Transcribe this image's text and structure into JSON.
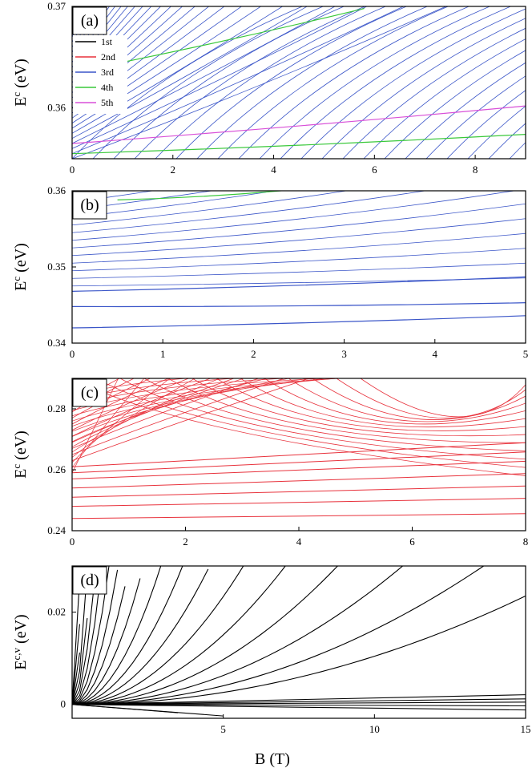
{
  "figure": {
    "xlabel": "B (T)"
  },
  "chart_data": [
    {
      "type": "line",
      "panel": "(a)",
      "ylabel": "E^c (eV)",
      "xlim": [
        0,
        9
      ],
      "ylim": [
        0.355,
        0.37
      ],
      "xticks": [
        0,
        2,
        4,
        6,
        8
      ],
      "yticks": [
        0.36,
        0.37
      ],
      "ytick_labels": [
        "0.36",
        "0.37"
      ],
      "legend": {
        "placement": "top-left",
        "entries": [
          {
            "label": "1st",
            "color": "#000000"
          },
          {
            "label": "2nd",
            "color": "#e8323c"
          },
          {
            "label": "3rd",
            "color": "#3a55c8"
          },
          {
            "label": "4th",
            "color": "#39c83a"
          },
          {
            "label": "5th",
            "color": "#d84fd8"
          }
        ]
      },
      "series": [
        {
          "color": "#3a55c8",
          "level_family": "3rd",
          "description": "dense fan of Landau levels rising with B",
          "start_energies_eV": [
            0.355,
            0.3555,
            0.356,
            0.3565,
            0.357,
            0.3575,
            0.358,
            0.3585,
            0.359,
            0.3595,
            0.36,
            0.3605,
            0.361,
            0.3615,
            0.362,
            0.3625,
            0.363,
            0.3635,
            0.364,
            0.3645,
            0.365,
            0.3655,
            0.366,
            0.3665,
            0.367,
            0.3675,
            0.368,
            0.3685,
            0.369,
            0.3695
          ]
        },
        {
          "color": "#39c83a",
          "level_family": "4th",
          "points": [
            [
              0,
              0.3555
            ],
            [
              9,
              0.3574
            ]
          ]
        },
        {
          "color": "#d84fd8",
          "level_family": "5th",
          "points": [
            [
              0,
              0.3565
            ],
            [
              9,
              0.3602
            ]
          ]
        },
        {
          "color": "#39c83a",
          "level_family": "4th",
          "points": [
            [
              1,
              0.3645
            ],
            [
              5.8,
              0.3698
            ]
          ]
        }
      ]
    },
    {
      "type": "line",
      "panel": "(b)",
      "ylabel": "E^c (eV)",
      "xlim": [
        0,
        5
      ],
      "ylim": [
        0.34,
        0.36
      ],
      "xticks": [
        0,
        1,
        2,
        3,
        4,
        5
      ],
      "yticks": [
        0.34,
        0.35,
        0.36
      ],
      "ytick_labels": [
        "0.34",
        "0.35",
        "0.36"
      ],
      "series": [
        {
          "color": "#3a55c8",
          "level_family": "3rd",
          "points": [
            [
              0,
              0.342
            ],
            [
              5,
              0.3436
            ]
          ]
        },
        {
          "color": "#3a55c8",
          "level_family": "3rd",
          "points": [
            [
              0,
              0.3448
            ],
            [
              5,
              0.3453
            ]
          ]
        },
        {
          "color": "#3a55c8",
          "level_family": "3rd",
          "points": [
            [
              0,
              0.3468
            ],
            [
              5,
              0.3487
            ]
          ]
        },
        {
          "color": "#3a55c8",
          "level_family": "3rd",
          "start_energies_eV": [
            0.3475,
            0.3485,
            0.3495,
            0.3505,
            0.3515,
            0.3525,
            0.3535,
            0.3545,
            0.3555,
            0.3565,
            0.3575,
            0.3585
          ]
        },
        {
          "color": "#39c83a",
          "level_family": "4th",
          "points": [
            [
              0.5,
              0.3588
            ],
            [
              2.3,
              0.36
            ]
          ]
        }
      ]
    },
    {
      "type": "line",
      "panel": "(c)",
      "ylabel": "E^c (eV)",
      "xlim": [
        0,
        8
      ],
      "ylim": [
        0.24,
        0.29
      ],
      "xticks": [
        0,
        2,
        4,
        6,
        8
      ],
      "yticks": [
        0.24,
        0.26,
        0.28
      ],
      "ytick_labels": [
        "0.24",
        "0.26",
        "0.28"
      ],
      "series": [
        {
          "color": "#e8323c",
          "level_family": "2nd",
          "description": "crossing red Landau levels: rising and falling fans",
          "start_energies_eV": [
            0.244,
            0.248,
            0.251,
            0.254,
            0.257,
            0.259,
            0.261,
            0.263,
            0.265,
            0.267,
            0.269,
            0.271,
            0.273,
            0.275,
            0.277,
            0.279,
            0.281,
            0.283,
            0.285,
            0.287
          ]
        }
      ]
    },
    {
      "type": "line",
      "panel": "(d)",
      "ylabel": "E^c,v (eV)",
      "xlim": [
        0,
        15
      ],
      "ylim": [
        -0.003,
        0.03
      ],
      "xticks": [
        5,
        10,
        15
      ],
      "yticks": [
        0,
        0.02
      ],
      "ytick_labels": [
        "0",
        "0.02"
      ],
      "series": [
        {
          "color": "#000000",
          "description": "black fan of levels emanating from origin",
          "end_energies_eV_at_Bmax": [
            0.0235,
            0.0021,
            0.0012,
            0.0005,
            -0.0003,
            -0.0012
          ]
        }
      ]
    }
  ]
}
